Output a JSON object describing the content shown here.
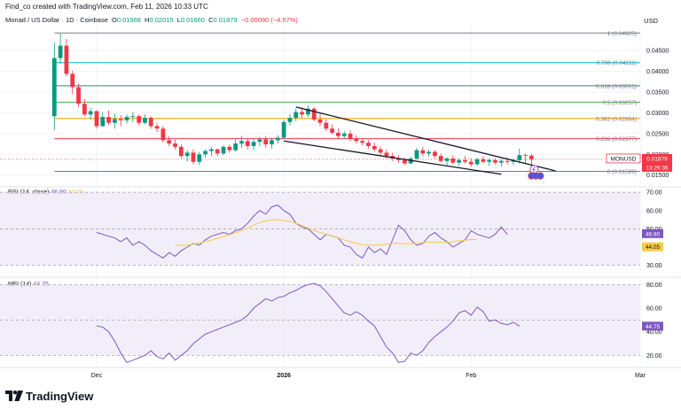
{
  "caption": "Find_co created with TradingView.com, Feb 11, 2026 10:33 UTC",
  "header": {
    "title": "Monad / US Dollar · 1D · Coinbase",
    "open_label": "O",
    "open": "0.01968",
    "high_label": "H",
    "high": "0.02015",
    "low_label": "L",
    "low": "0.01660",
    "close_label": "C",
    "close": "0.01879",
    "change": "−0.00090 (−4.57%)"
  },
  "currency": "USD",
  "colors": {
    "up": "#089981",
    "down": "#f23645",
    "rsi": "#7e57c2",
    "rsi_ma": "#f7c948",
    "fib_0": "#787b86",
    "fib_0236": "#f23645",
    "fib_0382": "#ff9800",
    "fib_05": "#4caf50",
    "fib_0618": "#089981",
    "fib_0786": "#00bcd4",
    "fib_1": "#787b86",
    "band_fill": "#ede7f6"
  },
  "chart_data": [
    {
      "type": "candlestick",
      "title": "Monad / US Dollar · 1D · Coinbase",
      "ylabel": "USD",
      "ylim": [
        0.0128,
        0.0508
      ],
      "y_ticks": [
        "0.04500",
        "0.04000",
        "0.03500",
        "0.03000",
        "0.02500",
        "0.02000",
        "0.01500"
      ],
      "y_tick_values": [
        0.045,
        0.04,
        0.035,
        0.03,
        0.025,
        0.02,
        0.015
      ],
      "x_ticks": [
        "Dec",
        "2026",
        "Feb",
        "Mar"
      ],
      "x_tick_dates": [
        "2025-12-01",
        "2026-01-01",
        "2026-02-01",
        "2026-03-01"
      ],
      "x_range": [
        "2025-11-15",
        "2026-03-01"
      ],
      "candles": [
        [
          "2025-11-24",
          0.0292,
          0.047,
          0.0258,
          0.0432
        ],
        [
          "2025-11-25",
          0.0432,
          0.0491,
          0.0418,
          0.0462
        ],
        [
          "2025-11-26",
          0.0462,
          0.0478,
          0.0388,
          0.0394
        ],
        [
          "2025-11-27",
          0.0394,
          0.0402,
          0.0346,
          0.0362
        ],
        [
          "2025-11-28",
          0.0362,
          0.0371,
          0.0314,
          0.0322
        ],
        [
          "2025-11-29",
          0.0322,
          0.0333,
          0.0292,
          0.0296
        ],
        [
          "2025-11-30",
          0.0296,
          0.0312,
          0.0284,
          0.0304
        ],
        [
          "2025-12-01",
          0.0304,
          0.0306,
          0.0262,
          0.0268
        ],
        [
          "2025-12-02",
          0.0268,
          0.0302,
          0.0266,
          0.029
        ],
        [
          "2025-12-03",
          0.029,
          0.0306,
          0.027,
          0.0276
        ],
        [
          "2025-12-04",
          0.0276,
          0.0298,
          0.0262,
          0.0285
        ],
        [
          "2025-12-05",
          0.0285,
          0.0295,
          0.0268,
          0.0282
        ],
        [
          "2025-12-06",
          0.0282,
          0.0296,
          0.0274,
          0.029
        ],
        [
          "2025-12-07",
          0.029,
          0.0302,
          0.0278,
          0.0292
        ],
        [
          "2025-12-08",
          0.0292,
          0.0296,
          0.027,
          0.0276
        ],
        [
          "2025-12-09",
          0.0276,
          0.0296,
          0.0272,
          0.0288
        ],
        [
          "2025-12-10",
          0.0288,
          0.0292,
          0.0262,
          0.0268
        ],
        [
          "2025-12-11",
          0.0268,
          0.0276,
          0.0254,
          0.0262
        ],
        [
          "2025-12-12",
          0.0262,
          0.0268,
          0.0228,
          0.0234
        ],
        [
          "2025-12-13",
          0.0234,
          0.0244,
          0.022,
          0.0226
        ],
        [
          "2025-12-14",
          0.0226,
          0.0236,
          0.0212,
          0.0218
        ],
        [
          "2025-12-15",
          0.0218,
          0.0224,
          0.019,
          0.0196
        ],
        [
          "2025-12-16",
          0.0196,
          0.021,
          0.0182,
          0.0204
        ],
        [
          "2025-12-17",
          0.0204,
          0.0212,
          0.0176,
          0.0182
        ],
        [
          "2025-12-18",
          0.0182,
          0.0206,
          0.0174,
          0.02
        ],
        [
          "2025-12-19",
          0.02,
          0.0212,
          0.0192,
          0.0208
        ],
        [
          "2025-12-20",
          0.0208,
          0.0218,
          0.0196,
          0.0212
        ],
        [
          "2025-12-21",
          0.0212,
          0.0214,
          0.0196,
          0.0202
        ],
        [
          "2025-12-22",
          0.0202,
          0.0222,
          0.0198,
          0.0218
        ],
        [
          "2025-12-23",
          0.0218,
          0.0224,
          0.0204,
          0.021
        ],
        [
          "2025-12-24",
          0.021,
          0.0236,
          0.0206,
          0.0226
        ],
        [
          "2025-12-25",
          0.0226,
          0.0244,
          0.0216,
          0.0232
        ],
        [
          "2025-12-26",
          0.0232,
          0.024,
          0.0212,
          0.022
        ],
        [
          "2025-12-27",
          0.022,
          0.0236,
          0.021,
          0.023
        ],
        [
          "2025-12-28",
          0.023,
          0.0242,
          0.022,
          0.0236
        ],
        [
          "2025-12-29",
          0.0236,
          0.0244,
          0.0216,
          0.0224
        ],
        [
          "2025-12-30",
          0.0224,
          0.024,
          0.0214,
          0.0234
        ],
        [
          "2025-12-31",
          0.0234,
          0.0246,
          0.0226,
          0.024
        ],
        [
          "2026-01-01",
          0.024,
          0.0284,
          0.0236,
          0.0278
        ],
        [
          "2026-01-02",
          0.0278,
          0.0296,
          0.027,
          0.0288
        ],
        [
          "2026-01-03",
          0.0288,
          0.031,
          0.028,
          0.0302
        ],
        [
          "2026-01-04",
          0.0302,
          0.0314,
          0.0288,
          0.0296
        ],
        [
          "2026-01-05",
          0.0296,
          0.0318,
          0.029,
          0.031
        ],
        [
          "2026-01-06",
          0.031,
          0.0314,
          0.028,
          0.0284
        ],
        [
          "2026-01-07",
          0.0284,
          0.0298,
          0.0268,
          0.0276
        ],
        [
          "2026-01-08",
          0.0276,
          0.0284,
          0.0256,
          0.0262
        ],
        [
          "2026-01-09",
          0.0262,
          0.0272,
          0.0248,
          0.0252
        ],
        [
          "2026-01-10",
          0.0252,
          0.0262,
          0.0238,
          0.0244
        ],
        [
          "2026-01-11",
          0.0244,
          0.0256,
          0.0236,
          0.025
        ],
        [
          "2026-01-12",
          0.025,
          0.0258,
          0.0232,
          0.0238
        ],
        [
          "2026-01-13",
          0.0238,
          0.0246,
          0.0226,
          0.0232
        ],
        [
          "2026-01-14",
          0.0232,
          0.0238,
          0.0222,
          0.0228
        ],
        [
          "2026-01-15",
          0.0228,
          0.0234,
          0.0214,
          0.022
        ],
        [
          "2026-01-16",
          0.022,
          0.0228,
          0.0206,
          0.0212
        ],
        [
          "2026-01-17",
          0.0212,
          0.0218,
          0.0198,
          0.0204
        ],
        [
          "2026-01-18",
          0.0204,
          0.0212,
          0.019,
          0.0196
        ],
        [
          "2026-01-19",
          0.0196,
          0.0204,
          0.0184,
          0.019
        ],
        [
          "2026-01-20",
          0.019,
          0.0198,
          0.018,
          0.0186
        ],
        [
          "2026-01-21",
          0.0186,
          0.0192,
          0.0174,
          0.0178
        ],
        [
          "2026-01-22",
          0.0178,
          0.0194,
          0.0176,
          0.019
        ],
        [
          "2026-01-23",
          0.019,
          0.0216,
          0.0186,
          0.021
        ],
        [
          "2026-01-24",
          0.021,
          0.0218,
          0.0196,
          0.0202
        ],
        [
          "2026-01-25",
          0.0202,
          0.0212,
          0.0194,
          0.0206
        ],
        [
          "2026-01-26",
          0.0206,
          0.021,
          0.019,
          0.0196
        ],
        [
          "2026-01-27",
          0.0196,
          0.0202,
          0.018,
          0.0184
        ],
        [
          "2026-01-28",
          0.0184,
          0.0194,
          0.0174,
          0.019
        ],
        [
          "2026-01-29",
          0.019,
          0.0198,
          0.0176,
          0.018
        ],
        [
          "2026-01-30",
          0.018,
          0.019,
          0.0172,
          0.0186
        ],
        [
          "2026-01-31",
          0.0186,
          0.0196,
          0.0178,
          0.0182
        ],
        [
          "2026-02-01",
          0.0182,
          0.019,
          0.017,
          0.0176
        ],
        [
          "2026-02-02",
          0.0176,
          0.0192,
          0.0172,
          0.0188
        ],
        [
          "2026-02-03",
          0.0188,
          0.0196,
          0.0178,
          0.0182
        ],
        [
          "2026-02-04",
          0.0182,
          0.019,
          0.0172,
          0.0186
        ],
        [
          "2026-02-05",
          0.0186,
          0.019,
          0.0176,
          0.018
        ],
        [
          "2026-02-06",
          0.018,
          0.0188,
          0.017,
          0.0184
        ],
        [
          "2026-02-07",
          0.0184,
          0.0192,
          0.0176,
          0.0182
        ],
        [
          "2026-02-08",
          0.0182,
          0.019,
          0.0174,
          0.0186
        ],
        [
          "2026-02-09",
          0.0186,
          0.0214,
          0.0178,
          0.0198
        ],
        [
          "2026-02-10",
          0.0198,
          0.0202,
          0.0176,
          0.0197
        ],
        [
          "2026-02-11",
          0.01968,
          0.02015,
          0.0166,
          0.01879
        ]
      ],
      "fib_levels": [
        {
          "label": "1 (0.04925)",
          "value": 0.04925,
          "color": "#787b86"
        },
        {
          "label": "0.786 (0.04211)",
          "value": 0.04211,
          "color": "#00bcd4"
        },
        {
          "label": "0.618 (0.03651)",
          "value": 0.03651,
          "color": "#089981"
        },
        {
          "label": "0.5 (0.03257)",
          "value": 0.03257,
          "color": "#4caf50"
        },
        {
          "label": "0.382 (0.02864)",
          "value": 0.02864,
          "color": "#ff9800"
        },
        {
          "label": "0.236 (0.02377)",
          "value": 0.02377,
          "color": "#f23645"
        },
        {
          "label": "0 (0.01589)",
          "value": 0.01589,
          "color": "#787b86"
        }
      ],
      "fib_start": "2025-11-24",
      "fib_end": "2026-03-01",
      "channel_lines": [
        {
          "from": [
            "2026-01-03",
            0.0314
          ],
          "to": [
            "2026-02-15",
            0.016
          ]
        },
        {
          "from": [
            "2026-01-01",
            0.0232
          ],
          "to": [
            "2026-02-06",
            0.0152
          ]
        }
      ],
      "last_price_label": "MONUSD",
      "last_price": "0.01879",
      "countdown": "13:26:36"
    },
    {
      "type": "line",
      "title": "RSI (14, close)",
      "ylim": [
        25,
        72
      ],
      "y_ticks": [
        "70.00",
        "60.00",
        "50.00",
        "40.00",
        "30.00"
      ],
      "y_tick_values": [
        70,
        60,
        50,
        40,
        30
      ],
      "band": [
        30,
        70
      ],
      "mid": 50,
      "rsi_value": "46.90",
      "rsi_ma_value": "44.05",
      "series": [
        {
          "name": "RSI",
          "start": "2025-12-01",
          "values": [
            48,
            47,
            46,
            45,
            43,
            45,
            41,
            43,
            41,
            38,
            36,
            34,
            37,
            35,
            38,
            40,
            42,
            41,
            44,
            46,
            47,
            48,
            47,
            49,
            50,
            53,
            57,
            60,
            58,
            62,
            63,
            60,
            58,
            53,
            51,
            50,
            47,
            44,
            47,
            46,
            45,
            41,
            40,
            36,
            34,
            40,
            37,
            39,
            36,
            44,
            52,
            49,
            44,
            41,
            42,
            46,
            48,
            45,
            43,
            40,
            42,
            44,
            49,
            47,
            46,
            45,
            47,
            51,
            46.9
          ]
        },
        {
          "name": "RSI-based MA",
          "start": "2025-12-14",
          "values": [
            41,
            41,
            41.2,
            41.6,
            42.2,
            43,
            43.8,
            44.8,
            45.8,
            46.8,
            47.8,
            49,
            50.4,
            52,
            53.4,
            54.4,
            55,
            55,
            54.6,
            54,
            53,
            51.8,
            50.4,
            49,
            48,
            47,
            46,
            45,
            44,
            43,
            42,
            41.4,
            41,
            41,
            41.2,
            41.6,
            42,
            42,
            41.8,
            41.8,
            42,
            42.4,
            42.8,
            42.8,
            42.6,
            42.6,
            43,
            43.4,
            43.8,
            44.2,
            44.05
          ]
        }
      ]
    },
    {
      "type": "line",
      "title": "MFI (14)",
      "ylim": [
        12,
        84
      ],
      "y_ticks": [
        "80.00",
        "60.00",
        "40.00",
        "20.00"
      ],
      "y_tick_values": [
        80,
        60,
        40,
        20
      ],
      "band": [
        20,
        80
      ],
      "mid": 50,
      "mfi_value": "44.75",
      "series": [
        {
          "name": "MFI",
          "start": "2025-12-01",
          "values": [
            45,
            44,
            40,
            32,
            22,
            14,
            16,
            18,
            20,
            24,
            19,
            17,
            22,
            16,
            20,
            24,
            30,
            34,
            38,
            40,
            42,
            44,
            46,
            48,
            50,
            54,
            60,
            64,
            68,
            66,
            69,
            70,
            73,
            75,
            78,
            80,
            81,
            79,
            74,
            68,
            62,
            56,
            54,
            57,
            54,
            49,
            45,
            36,
            27,
            22,
            14,
            15,
            22,
            20,
            24,
            31,
            36,
            40,
            44,
            49,
            56,
            58,
            54,
            61,
            57,
            49,
            50,
            47,
            46,
            48,
            44.75
          ]
        }
      ]
    }
  ],
  "rsi": {
    "label": "RSI (14, close)",
    "value": "46.90",
    "ma_value": "44.05"
  },
  "mfi": {
    "label": "MFI (14)",
    "value": "44.75"
  },
  "footer": {
    "logo_text": "TradingView"
  }
}
